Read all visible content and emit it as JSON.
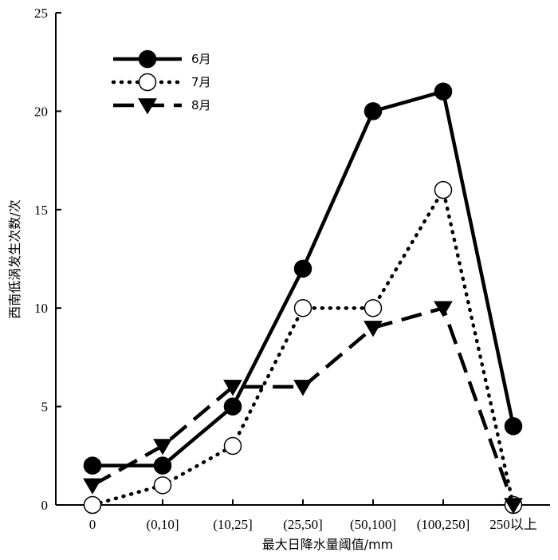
{
  "chart_data": {
    "type": "line",
    "categories": [
      "0",
      "(0,10]",
      "(10,25]",
      "(25,50]",
      "(50,100]",
      "(100,250]",
      "250以上"
    ],
    "xlabel": "最大日降水量阈值/mm",
    "ylabel": "西南低涡发生次数/次",
    "ylim": [
      0,
      25
    ],
    "yticks": [
      0,
      5,
      10,
      15,
      20,
      25
    ],
    "grid": false,
    "legend_position": "top-left",
    "series": [
      {
        "name": "6月",
        "values": [
          2,
          2,
          5,
          12,
          20,
          21,
          4
        ],
        "line_style": "solid",
        "marker": "filled-circle",
        "color": "#000000"
      },
      {
        "name": "7月",
        "values": [
          0,
          1,
          3,
          10,
          10,
          16,
          0
        ],
        "line_style": "dotted",
        "marker": "open-circle",
        "color": "#000000"
      },
      {
        "name": "8月",
        "values": [
          1,
          3,
          6,
          6,
          9,
          10,
          0
        ],
        "line_style": "dashed",
        "marker": "filled-triangle-down",
        "color": "#000000"
      }
    ]
  }
}
